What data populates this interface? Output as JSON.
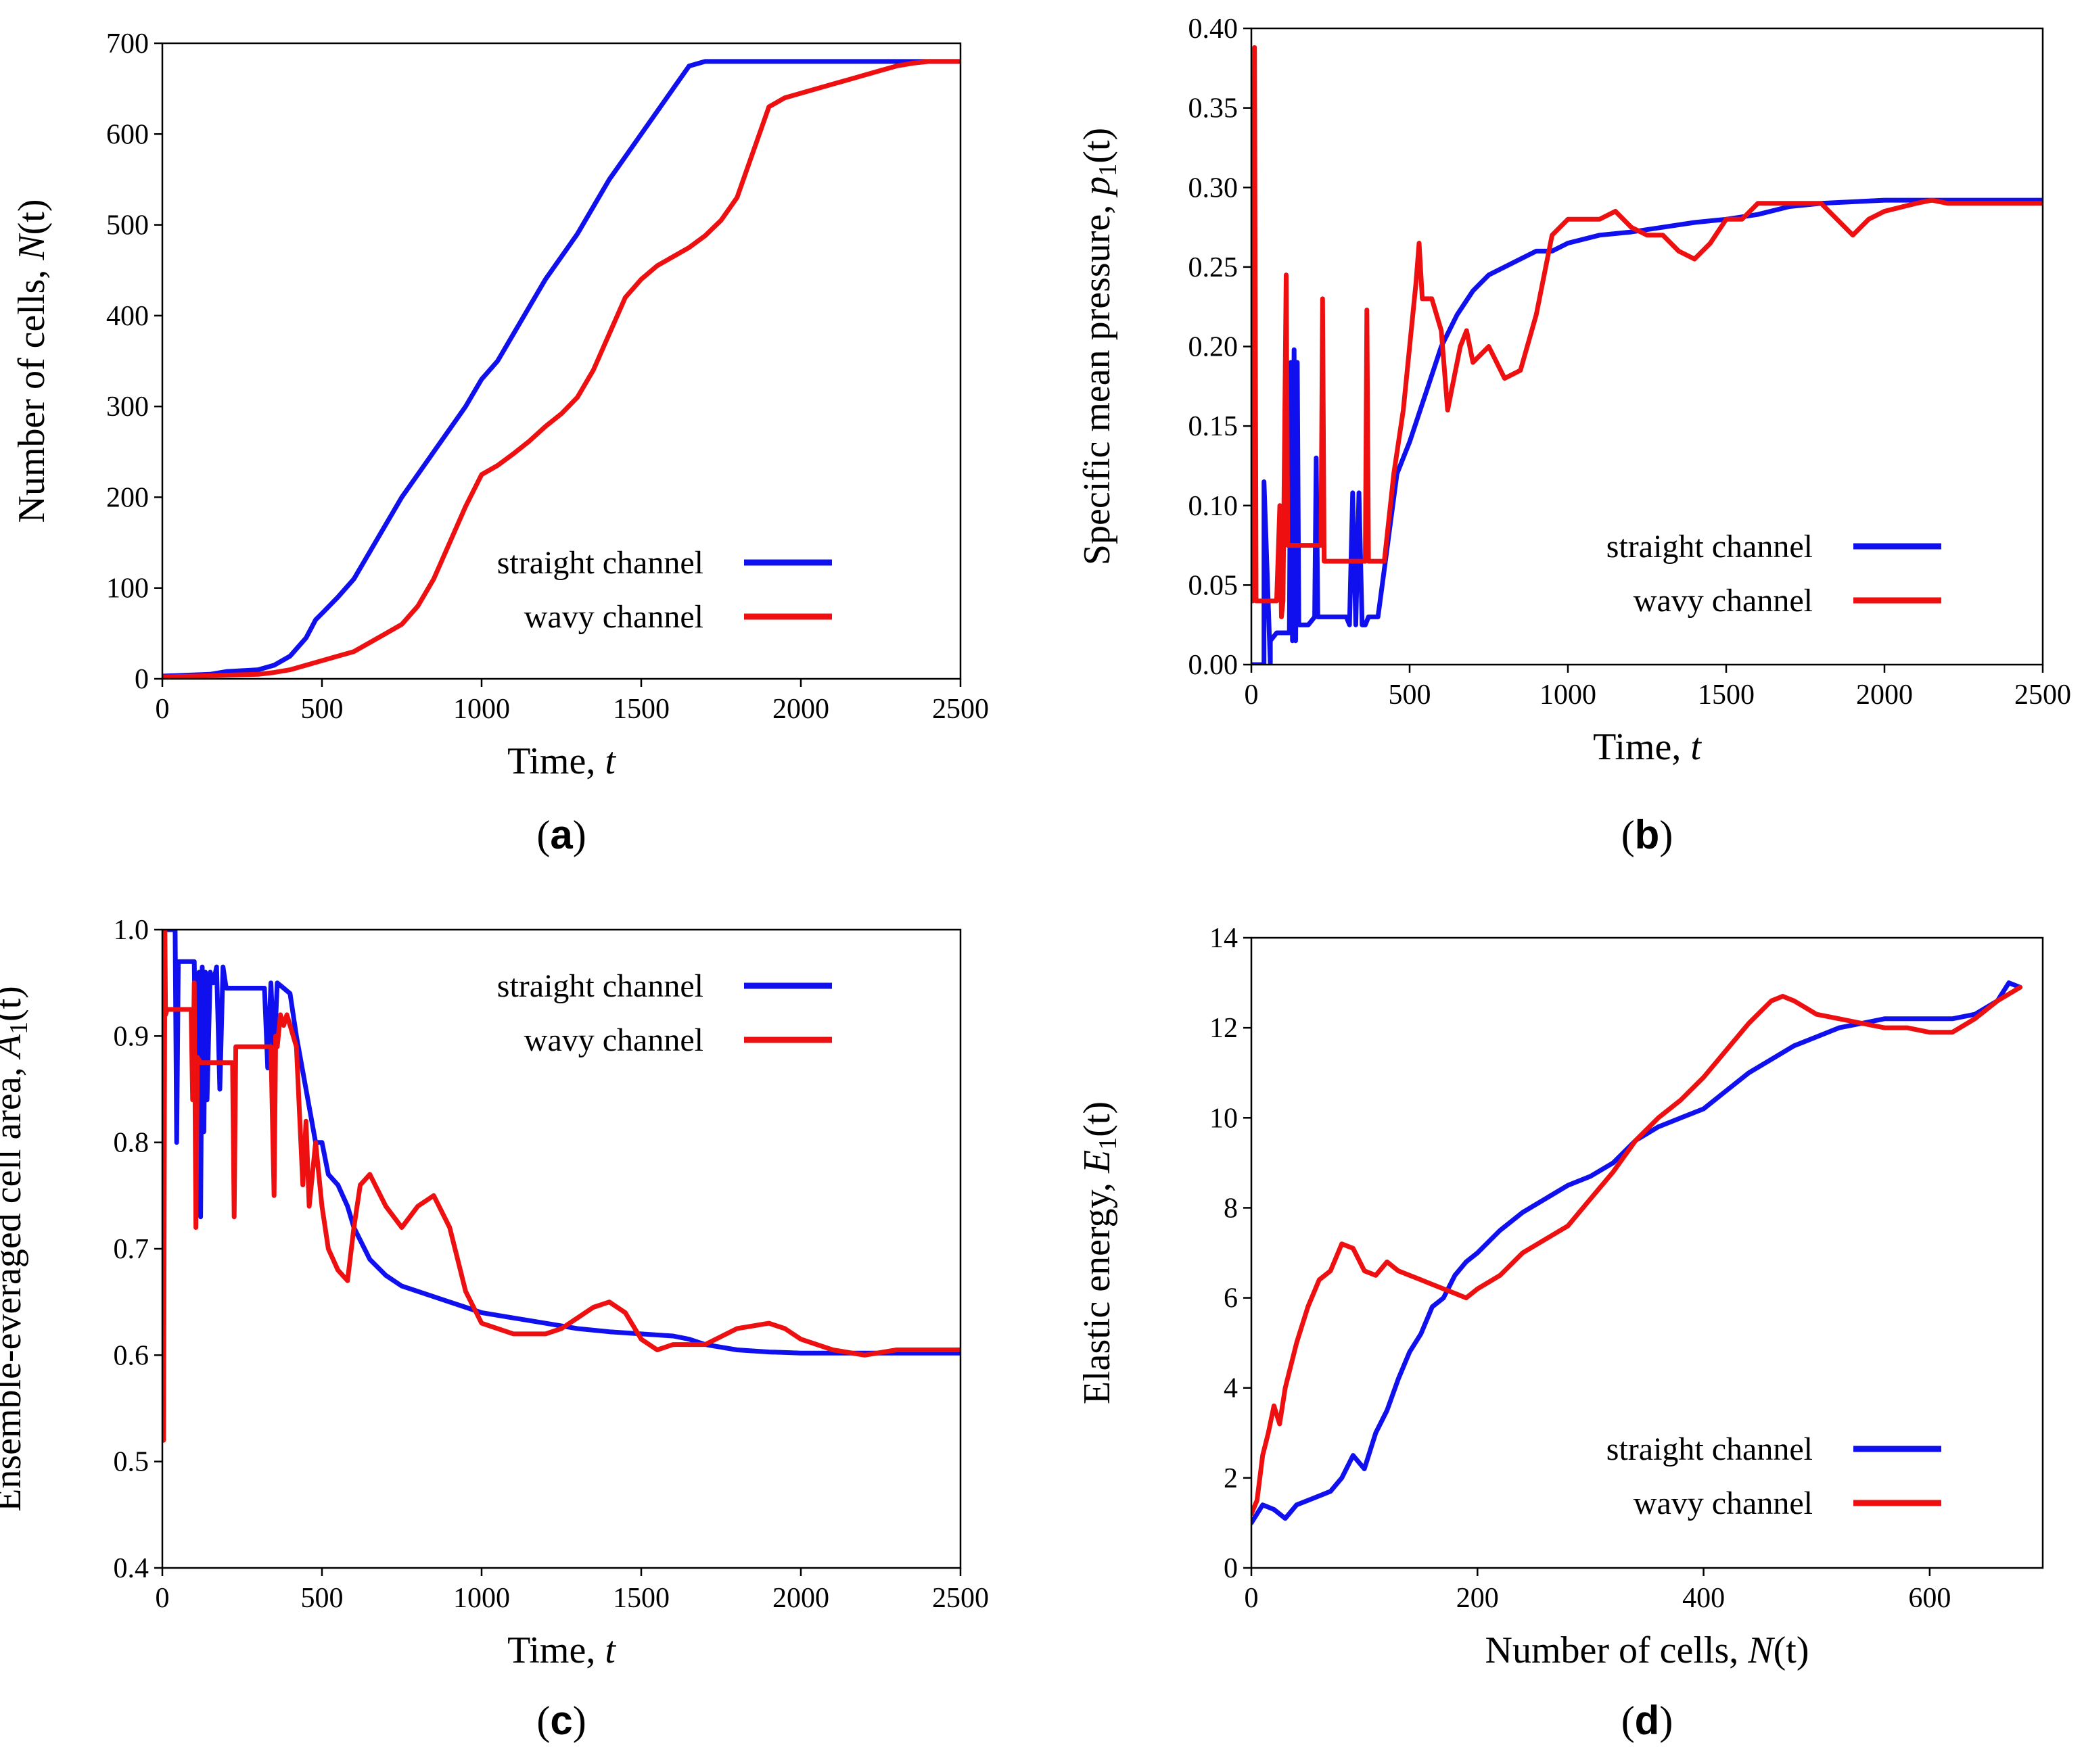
{
  "figure": {
    "colors": {
      "straight": "#1010ee",
      "wavy": "#ee1010"
    }
  },
  "chart_data": [
    {
      "id": "a",
      "type": "line",
      "panel_label": "a",
      "xlabel": "Time, ",
      "xlabel_var": "t",
      "ylabel": "Number of cells, ",
      "ylabel_var": "N",
      "ylabel_suffix": "(t)",
      "xlim": [
        0,
        2500
      ],
      "ylim": [
        0,
        700
      ],
      "xticks": [
        0,
        500,
        1000,
        1500,
        2000,
        2500
      ],
      "yticks": [
        0,
        100,
        200,
        300,
        400,
        500,
        600,
        700
      ],
      "ytick_decimals": 0,
      "legend_position": "center-right",
      "series": [
        {
          "name": "straight channel",
          "color": "#1010ee",
          "x": [
            0,
            150,
            200,
            300,
            350,
            400,
            450,
            480,
            500,
            550,
            600,
            650,
            700,
            750,
            800,
            850,
            900,
            950,
            1000,
            1050,
            1100,
            1150,
            1200,
            1250,
            1300,
            1350,
            1400,
            1450,
            1500,
            1550,
            1600,
            1650,
            1700,
            1750,
            1800,
            2000,
            2500
          ],
          "y": [
            3,
            5,
            8,
            10,
            15,
            25,
            45,
            65,
            72,
            90,
            110,
            140,
            170,
            200,
            225,
            250,
            275,
            300,
            330,
            350,
            380,
            410,
            440,
            465,
            490,
            520,
            550,
            575,
            600,
            625,
            650,
            675,
            680,
            680,
            680,
            680,
            680
          ]
        },
        {
          "name": "wavy channel",
          "color": "#ee1010",
          "x": [
            0,
            200,
            300,
            350,
            400,
            450,
            500,
            550,
            600,
            650,
            700,
            750,
            800,
            850,
            900,
            950,
            1000,
            1050,
            1100,
            1150,
            1200,
            1250,
            1300,
            1350,
            1400,
            1450,
            1500,
            1550,
            1600,
            1650,
            1700,
            1750,
            1800,
            1850,
            1900,
            1950,
            2000,
            2050,
            2100,
            2150,
            2200,
            2250,
            2300,
            2350,
            2400,
            2450,
            2500
          ],
          "y": [
            2,
            4,
            5,
            7,
            10,
            15,
            20,
            25,
            30,
            40,
            50,
            60,
            80,
            110,
            150,
            190,
            225,
            235,
            248,
            262,
            278,
            292,
            310,
            340,
            380,
            420,
            440,
            455,
            465,
            475,
            488,
            505,
            530,
            580,
            630,
            640,
            645,
            650,
            655,
            660,
            665,
            670,
            675,
            678,
            680,
            680,
            680
          ]
        }
      ]
    },
    {
      "id": "b",
      "type": "line",
      "panel_label": "b",
      "xlabel": "Time, ",
      "xlabel_var": "t",
      "ylabel": "Specific mean pressure, ",
      "ylabel_var": "p",
      "ylabel_sub": "1",
      "ylabel_suffix": "(t)",
      "xlim": [
        0,
        2500
      ],
      "ylim": [
        0,
        0.4
      ],
      "xticks": [
        0,
        500,
        1000,
        1500,
        2000,
        2500
      ],
      "yticks": [
        0,
        0.05,
        0.1,
        0.15,
        0.2,
        0.25,
        0.3,
        0.35,
        0.4
      ],
      "ytick_decimals": 2,
      "legend_position": "center-right",
      "series": [
        {
          "name": "straight channel",
          "color": "#1010ee",
          "x": [
            0,
            20,
            40,
            40,
            60,
            60,
            80,
            80,
            100,
            120,
            125,
            130,
            135,
            140,
            145,
            150,
            160,
            180,
            200,
            205,
            210,
            250,
            300,
            310,
            320,
            330,
            340,
            350,
            360,
            370,
            400,
            420,
            440,
            460,
            480,
            500,
            550,
            600,
            650,
            700,
            750,
            800,
            850,
            900,
            950,
            1000,
            1100,
            1200,
            1300,
            1400,
            1500,
            1600,
            1700,
            1800,
            2000,
            2200,
            2500
          ],
          "y": [
            0.0,
            0.0,
            0.0,
            0.115,
            0.0,
            0.015,
            0.02,
            0.02,
            0.02,
            0.02,
            0.19,
            0.015,
            0.198,
            0.015,
            0.19,
            0.025,
            0.025,
            0.025,
            0.03,
            0.13,
            0.03,
            0.03,
            0.03,
            0.025,
            0.108,
            0.025,
            0.108,
            0.025,
            0.025,
            0.03,
            0.03,
            0.06,
            0.09,
            0.12,
            0.13,
            0.14,
            0.17,
            0.2,
            0.22,
            0.235,
            0.245,
            0.25,
            0.255,
            0.26,
            0.26,
            0.265,
            0.27,
            0.272,
            0.275,
            0.278,
            0.28,
            0.283,
            0.288,
            0.29,
            0.292,
            0.292,
            0.292
          ]
        },
        {
          "name": "wavy channel",
          "color": "#ee1010",
          "x": [
            0,
            5,
            10,
            15,
            20,
            40,
            60,
            80,
            90,
            95,
            100,
            110,
            115,
            120,
            130,
            160,
            200,
            220,
            225,
            230,
            260,
            300,
            350,
            360,
            365,
            370,
            380,
            420,
            450,
            480,
            500,
            520,
            530,
            540,
            550,
            570,
            600,
            620,
            640,
            660,
            680,
            700,
            750,
            800,
            850,
            900,
            950,
            1000,
            1050,
            1100,
            1150,
            1200,
            1250,
            1300,
            1350,
            1400,
            1450,
            1500,
            1550,
            1600,
            1700,
            1800,
            1850,
            1900,
            1950,
            2000,
            2100,
            2150,
            2200,
            2300,
            2400,
            2500
          ],
          "y": [
            0.04,
            0.04,
            0.388,
            0.04,
            0.04,
            0.04,
            0.04,
            0.04,
            0.1,
            0.03,
            0.04,
            0.245,
            0.075,
            0.075,
            0.075,
            0.075,
            0.075,
            0.075,
            0.23,
            0.065,
            0.065,
            0.065,
            0.065,
            0.065,
            0.223,
            0.065,
            0.065,
            0.065,
            0.12,
            0.16,
            0.2,
            0.24,
            0.265,
            0.23,
            0.23,
            0.23,
            0.21,
            0.16,
            0.18,
            0.2,
            0.21,
            0.19,
            0.2,
            0.18,
            0.185,
            0.22,
            0.27,
            0.28,
            0.28,
            0.28,
            0.285,
            0.275,
            0.27,
            0.27,
            0.26,
            0.255,
            0.265,
            0.28,
            0.28,
            0.29,
            0.29,
            0.29,
            0.28,
            0.27,
            0.28,
            0.285,
            0.29,
            0.292,
            0.29,
            0.29,
            0.29,
            0.29
          ]
        }
      ]
    },
    {
      "id": "c",
      "type": "line",
      "panel_label": "c",
      "xlabel": "Time, ",
      "xlabel_var": "t",
      "ylabel": "Ensemble-everaged cell area, ",
      "ylabel_var": "A",
      "ylabel_sub": "1",
      "ylabel_suffix": "(t)",
      "xlim": [
        0,
        2500
      ],
      "ylim": [
        0.4,
        1.0
      ],
      "xticks": [
        0,
        500,
        1000,
        1500,
        2000,
        2500
      ],
      "yticks": [
        0.4,
        0.5,
        0.6,
        0.7,
        0.8,
        0.9,
        1.0
      ],
      "ytick_decimals": 1,
      "legend_position": "top-right",
      "series": [
        {
          "name": "straight channel",
          "color": "#1010ee",
          "x": [
            0,
            20,
            40,
            45,
            50,
            55,
            60,
            100,
            110,
            115,
            120,
            125,
            130,
            135,
            140,
            150,
            160,
            170,
            180,
            190,
            200,
            250,
            320,
            330,
            340,
            350,
            360,
            380,
            400,
            420,
            450,
            480,
            500,
            520,
            550,
            580,
            600,
            650,
            700,
            750,
            800,
            850,
            900,
            950,
            1000,
            1100,
            1200,
            1300,
            1400,
            1500,
            1600,
            1650,
            1700,
            1800,
            1900,
            2000,
            2200,
            2500
          ],
          "y": [
            1.0,
            1.0,
            1.0,
            0.8,
            0.97,
            0.97,
            0.97,
            0.97,
            0.74,
            0.96,
            0.73,
            0.965,
            0.81,
            0.96,
            0.84,
            0.96,
            0.95,
            0.965,
            0.85,
            0.965,
            0.945,
            0.945,
            0.945,
            0.87,
            0.95,
            0.88,
            0.95,
            0.945,
            0.94,
            0.9,
            0.85,
            0.8,
            0.8,
            0.77,
            0.76,
            0.74,
            0.72,
            0.69,
            0.675,
            0.665,
            0.66,
            0.655,
            0.65,
            0.645,
            0.64,
            0.635,
            0.63,
            0.625,
            0.622,
            0.62,
            0.618,
            0.615,
            0.61,
            0.605,
            0.603,
            0.602,
            0.602,
            0.602
          ]
        },
        {
          "name": "wavy channel",
          "color": "#ee1010",
          "x": [
            0,
            4,
            8,
            10,
            15,
            20,
            60,
            90,
            95,
            100,
            105,
            110,
            120,
            150,
            200,
            220,
            225,
            230,
            300,
            340,
            350,
            355,
            360,
            370,
            380,
            390,
            420,
            440,
            450,
            460,
            480,
            500,
            520,
            550,
            580,
            600,
            620,
            650,
            700,
            750,
            800,
            850,
            900,
            950,
            1000,
            1100,
            1200,
            1250,
            1300,
            1350,
            1400,
            1450,
            1500,
            1550,
            1600,
            1700,
            1800,
            1900,
            1950,
            2000,
            2100,
            2200,
            2300,
            2400,
            2500
          ],
          "y": [
            0.6,
            0.52,
            1.0,
            0.92,
            0.925,
            0.925,
            0.925,
            0.925,
            0.84,
            0.95,
            0.72,
            0.88,
            0.875,
            0.875,
            0.875,
            0.875,
            0.73,
            0.89,
            0.89,
            0.89,
            0.75,
            0.9,
            0.89,
            0.92,
            0.91,
            0.92,
            0.89,
            0.76,
            0.82,
            0.74,
            0.8,
            0.74,
            0.7,
            0.68,
            0.67,
            0.72,
            0.76,
            0.77,
            0.74,
            0.72,
            0.74,
            0.75,
            0.72,
            0.66,
            0.63,
            0.62,
            0.62,
            0.625,
            0.635,
            0.645,
            0.65,
            0.64,
            0.615,
            0.605,
            0.61,
            0.61,
            0.625,
            0.63,
            0.625,
            0.615,
            0.605,
            0.6,
            0.605,
            0.605,
            0.605
          ]
        }
      ]
    },
    {
      "id": "d",
      "type": "line",
      "panel_label": "d",
      "xlabel": "Number of cells, ",
      "xlabel_var": "N",
      "xlabel_suffix": "(t)",
      "ylabel": "Elastic energy, ",
      "ylabel_var": "E",
      "ylabel_sub": "1",
      "ylabel_suffix": "(t)",
      "xlim": [
        0,
        700
      ],
      "ylim": [
        0,
        14
      ],
      "xticks": [
        0,
        200,
        400,
        600
      ],
      "yticks": [
        0,
        2,
        4,
        6,
        8,
        10,
        12,
        14
      ],
      "ytick_decimals": 0,
      "legend_position": "bottom-right",
      "series": [
        {
          "name": "straight channel",
          "color": "#1010ee",
          "x": [
            0,
            10,
            20,
            30,
            40,
            50,
            60,
            70,
            80,
            90,
            100,
            110,
            120,
            130,
            140,
            150,
            160,
            170,
            180,
            190,
            200,
            220,
            240,
            260,
            280,
            300,
            320,
            340,
            360,
            380,
            400,
            420,
            440,
            460,
            480,
            500,
            520,
            540,
            560,
            580,
            600,
            620,
            640,
            660,
            670,
            680
          ],
          "y": [
            1.0,
            1.4,
            1.3,
            1.1,
            1.4,
            1.5,
            1.6,
            1.7,
            2.0,
            2.5,
            2.2,
            3.0,
            3.5,
            4.2,
            4.8,
            5.2,
            5.8,
            6.0,
            6.5,
            6.8,
            7.0,
            7.5,
            7.9,
            8.2,
            8.5,
            8.7,
            9.0,
            9.5,
            9.8,
            10.0,
            10.2,
            10.6,
            11.0,
            11.3,
            11.6,
            11.8,
            12.0,
            12.1,
            12.2,
            12.2,
            12.2,
            12.2,
            12.3,
            12.6,
            13.0,
            12.9
          ]
        },
        {
          "name": "wavy channel",
          "color": "#ee1010",
          "x": [
            0,
            5,
            10,
            15,
            20,
            25,
            30,
            40,
            50,
            60,
            70,
            80,
            90,
            100,
            110,
            120,
            130,
            140,
            150,
            160,
            170,
            180,
            190,
            200,
            220,
            240,
            260,
            280,
            300,
            320,
            340,
            360,
            380,
            400,
            420,
            440,
            460,
            470,
            480,
            500,
            520,
            540,
            560,
            580,
            600,
            620,
            640,
            660,
            680
          ],
          "y": [
            1.2,
            1.5,
            2.5,
            3.0,
            3.6,
            3.2,
            4.0,
            5.0,
            5.8,
            6.4,
            6.6,
            7.2,
            7.1,
            6.6,
            6.5,
            6.8,
            6.6,
            6.5,
            6.4,
            6.3,
            6.2,
            6.1,
            6.0,
            6.2,
            6.5,
            7.0,
            7.3,
            7.6,
            8.2,
            8.8,
            9.5,
            10.0,
            10.4,
            10.9,
            11.5,
            12.1,
            12.6,
            12.7,
            12.6,
            12.3,
            12.2,
            12.1,
            12.0,
            12.0,
            11.9,
            11.9,
            12.2,
            12.6,
            12.9
          ]
        }
      ]
    }
  ]
}
